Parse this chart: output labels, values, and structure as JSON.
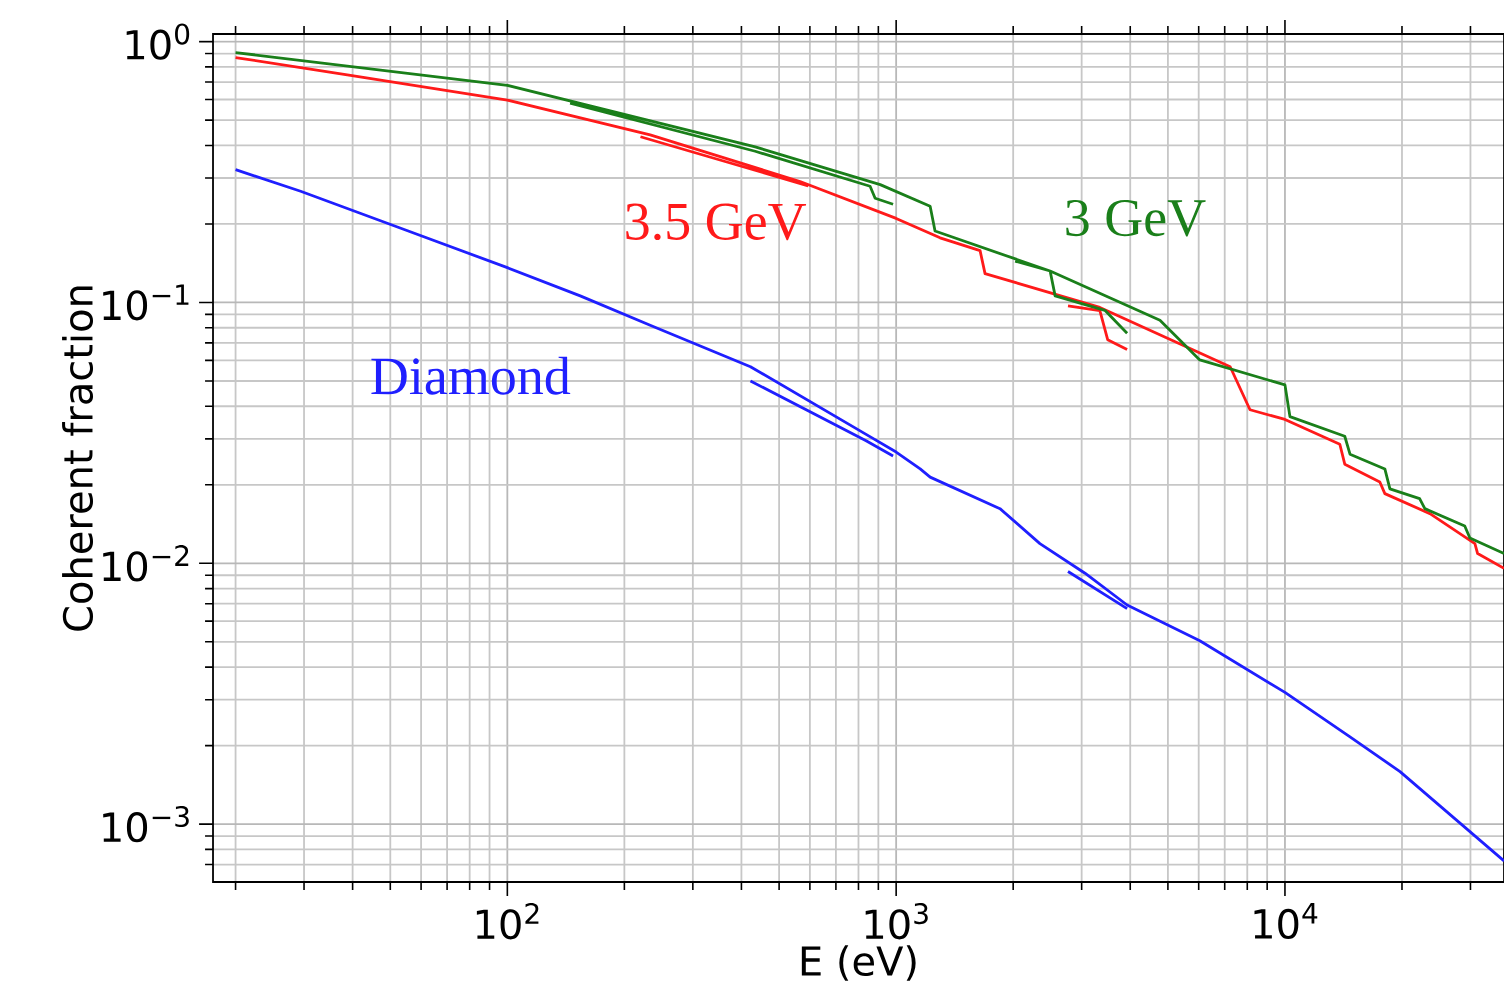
{
  "chart_data": {
    "type": "line",
    "xlabel": "E (eV)",
    "ylabel": "Coherent fraction",
    "log": "xy",
    "grid": true,
    "line_style": "solid",
    "marker": "none",
    "xlim": [
      17.5,
      36600
    ],
    "ylim": [
      0.0006,
      1.07
    ],
    "xticks": [
      {
        "value": 20,
        "label": null
      },
      {
        "value": 30,
        "label": null
      },
      {
        "value": 40,
        "label": null
      },
      {
        "value": 50,
        "label": null
      },
      {
        "value": 60,
        "label": null
      },
      {
        "value": 70,
        "label": null
      },
      {
        "value": 80,
        "label": null
      },
      {
        "value": 90,
        "label": null
      },
      {
        "value": 100,
        "label": "10$^{2}$"
      },
      {
        "value": 200,
        "label": null
      },
      {
        "value": 300,
        "label": null
      },
      {
        "value": 400,
        "label": null
      },
      {
        "value": 500,
        "label": null
      },
      {
        "value": 600,
        "label": null
      },
      {
        "value": 700,
        "label": null
      },
      {
        "value": 800,
        "label": null
      },
      {
        "value": 900,
        "label": null
      },
      {
        "value": 1000,
        "label": "10$^{3}$"
      },
      {
        "value": 2000,
        "label": null
      },
      {
        "value": 3000,
        "label": null
      },
      {
        "value": 4000,
        "label": null
      },
      {
        "value": 5000,
        "label": null
      },
      {
        "value": 6000,
        "label": null
      },
      {
        "value": 7000,
        "label": null
      },
      {
        "value": 8000,
        "label": null
      },
      {
        "value": 9000,
        "label": null
      },
      {
        "value": 10000,
        "label": "10$^{4}$"
      },
      {
        "value": 20000,
        "label": null
      },
      {
        "value": 30000,
        "label": null
      }
    ],
    "yticks": [
      {
        "value": 0.0007,
        "label": null
      },
      {
        "value": 0.0008,
        "label": null
      },
      {
        "value": 0.0009,
        "label": null
      },
      {
        "value": 0.001,
        "label": "10$^{−3}$"
      },
      {
        "value": 0.002,
        "label": null
      },
      {
        "value": 0.003,
        "label": null
      },
      {
        "value": 0.004,
        "label": null
      },
      {
        "value": 0.005,
        "label": null
      },
      {
        "value": 0.006,
        "label": null
      },
      {
        "value": 0.007,
        "label": null
      },
      {
        "value": 0.008,
        "label": null
      },
      {
        "value": 0.009,
        "label": null
      },
      {
        "value": 0.01,
        "label": "10$^{−2}$"
      },
      {
        "value": 0.02,
        "label": null
      },
      {
        "value": 0.03,
        "label": null
      },
      {
        "value": 0.04,
        "label": null
      },
      {
        "value": 0.05,
        "label": null
      },
      {
        "value": 0.06,
        "label": null
      },
      {
        "value": 0.07,
        "label": null
      },
      {
        "value": 0.08,
        "label": null
      },
      {
        "value": 0.09,
        "label": null
      },
      {
        "value": 0.1,
        "label": "10$^{−1}$"
      },
      {
        "value": 0.2,
        "label": null
      },
      {
        "value": 0.3,
        "label": null
      },
      {
        "value": 0.4,
        "label": null
      },
      {
        "value": 0.5,
        "label": null
      },
      {
        "value": 0.6,
        "label": null
      },
      {
        "value": 0.7,
        "label": null
      },
      {
        "value": 0.8,
        "label": null
      },
      {
        "value": 0.9,
        "label": null
      },
      {
        "value": 1,
        "label": "10$^{0}$"
      }
    ],
    "series": [
      {
        "name": "Diamond",
        "color": "#1f1fff",
        "x": [
          20,
          29.4,
          53,
          100,
          154,
          233,
          422,
          837,
          1000,
          1153,
          1223,
          1850,
          2343,
          3060,
          3927,
          6040,
          10000,
          14700,
          19770,
          36600,
          null,
          422,
          837,
          982,
          null,
          2767,
          3927
        ],
        "values": [
          0.323,
          0.267,
          0.193,
          0.136,
          0.106,
          0.0818,
          0.0567,
          0.0312,
          0.0267,
          0.023,
          0.0214,
          0.0162,
          0.0119,
          0.00916,
          0.00692,
          0.00505,
          0.0032,
          0.00216,
          0.00159,
          0.000723,
          null,
          0.05,
          0.0295,
          0.0258,
          null,
          0.0093,
          0.0067
        ]
      },
      {
        "name": "3.5 GeV",
        "color": "#ff1a1a",
        "x": [
          20,
          39.5,
          100,
          233,
          566,
          1000,
          1297,
          1644,
          1693,
          3342,
          7230,
          8130,
          10000,
          13840,
          14250,
          17540,
          18070,
          23600,
          30800,
          31300,
          36600,
          null,
          220,
          594,
          null,
          2767,
          3342,
          3500,
          3927
        ],
        "values": [
          0.869,
          0.743,
          0.597,
          0.439,
          0.291,
          0.21,
          0.177,
          0.158,
          0.129,
          0.0957,
          0.0567,
          0.0388,
          0.0356,
          0.0286,
          0.024,
          0.0205,
          0.0185,
          0.0155,
          0.0119,
          0.0109,
          0.00957,
          null,
          0.432,
          0.28,
          null,
          0.097,
          0.093,
          0.072,
          0.066
        ]
      },
      {
        "name": "3 GeV",
        "color": "#1a7f1a",
        "x": [
          20,
          100,
          434,
          910,
          1223,
          1259,
          2489,
          4770,
          6040,
          10000,
          10300,
          14250,
          14700,
          18070,
          18620,
          22200,
          22900,
          29000,
          29900,
          36600,
          null,
          145,
          434,
          857,
          883,
          982,
          null,
          2023,
          2489,
          2564,
          3442,
          3927
        ],
        "values": [
          0.908,
          0.68,
          0.395,
          0.283,
          0.234,
          0.188,
          0.132,
          0.0855,
          0.0602,
          0.0483,
          0.0365,
          0.0307,
          0.0262,
          0.023,
          0.0193,
          0.0177,
          0.0162,
          0.0139,
          0.0125,
          0.0109,
          null,
          0.581,
          0.38,
          0.279,
          0.251,
          0.238,
          null,
          0.144,
          0.132,
          0.106,
          0.0933,
          0.0762
        ]
      }
    ]
  }
}
